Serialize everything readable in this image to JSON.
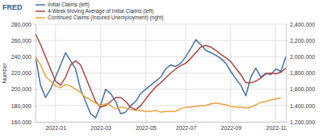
{
  "chart_data": {
    "type": "line",
    "source": "FRED",
    "y_label": "Number",
    "categories": [
      null,
      null,
      null,
      null,
      "2022-01",
      null,
      null,
      null,
      null,
      null,
      null,
      null,
      null,
      "2022-03",
      null,
      null,
      null,
      null,
      null,
      null,
      null,
      null,
      "2022-05",
      null,
      null,
      null,
      null,
      null,
      null,
      null,
      "2022-07",
      null,
      null,
      null,
      null,
      null,
      null,
      null,
      null,
      "2022-09",
      null,
      null,
      null,
      null,
      null,
      null,
      null,
      null,
      "2022-11",
      null,
      null
    ],
    "series": [
      {
        "name": "Initial Claims (left)",
        "color": "#4572a7",
        "values": [
          240000,
          205000,
          190000,
          200000,
          215000,
          230000,
          245000,
          235000,
          225000,
          200000,
          185000,
          170000,
          165000,
          180000,
          200000,
          195000,
          185000,
          170000,
          172000,
          180000,
          185000,
          195000,
          200000,
          205000,
          210000,
          215000,
          225000,
          230000,
          228000,
          232000,
          240000,
          250000,
          261000,
          255000,
          248000,
          245000,
          242000,
          238000,
          232000,
          222000,
          213000,
          205000,
          192000,
          215000,
          226000,
          215000,
          220000,
          218000,
          225000,
          222000,
          240000
        ]
      },
      {
        "name": "4-Week Moving Average of Initial Claims (left)",
        "color": "#aa4643",
        "values": [
          268000,
          255000,
          240000,
          225000,
          210000,
          205000,
          215000,
          230000,
          235000,
          230000,
          215000,
          200000,
          185000,
          178000,
          180000,
          185000,
          190000,
          190000,
          185000,
          178000,
          175000,
          180000,
          188000,
          196000,
          203000,
          208000,
          214000,
          220000,
          225000,
          229000,
          232000,
          238000,
          245000,
          252000,
          254000,
          252000,
          248000,
          243000,
          239000,
          234000,
          226000,
          218000,
          208000,
          208000,
          210000,
          214000,
          219000,
          220000,
          219000,
          221000,
          226000
        ]
      },
      {
        "name": "Continued Claims (Insured Unemployment) (right)",
        "color": "#e7a33b",
        "axis": "y2",
        "values": [
          2000000,
          1900000,
          1760000,
          1700000,
          1640000,
          1620000,
          1660000,
          1640000,
          1600000,
          1560000,
          1500000,
          1470000,
          1430000,
          1400000,
          1420000,
          1400000,
          1360000,
          1380000,
          1370000,
          1350000,
          1340000,
          1340000,
          1330000,
          1330000,
          1340000,
          1320000,
          1330000,
          1330000,
          1330000,
          1360000,
          1380000,
          1380000,
          1390000,
          1400000,
          1400000,
          1420000,
          1430000,
          1420000,
          1410000,
          1390000,
          1380000,
          1380000,
          1370000,
          1380000,
          1410000,
          1440000,
          1450000,
          1470000,
          1480000,
          1500000,
          null
        ]
      }
    ],
    "ylim": [
      160000,
      280000
    ],
    "yticks": [
      {
        "value": 160000,
        "label": "160,000"
      },
      {
        "value": 180000,
        "label": "180,000"
      },
      {
        "value": 200000,
        "label": "200,000"
      },
      {
        "value": 220000,
        "label": "220,000"
      },
      {
        "value": 240000,
        "label": "240,000"
      },
      {
        "value": 260000,
        "label": "260,000"
      },
      {
        "value": 280000,
        "label": "280,000"
      }
    ],
    "y2lim": [
      1200000,
      2400000
    ],
    "y2ticks": [
      {
        "value": 1200000,
        "label": "1,200,000"
      },
      {
        "value": 1400000,
        "label": "1,400,000"
      },
      {
        "value": 1600000,
        "label": "1,600,000"
      },
      {
        "value": 1800000,
        "label": "1,800,000"
      },
      {
        "value": 2000000,
        "label": "2,000,000"
      },
      {
        "value": 2200000,
        "label": "2,200,000"
      },
      {
        "value": 2400000,
        "label": "2,400,000"
      }
    ],
    "grid": true,
    "legend": "top-left"
  }
}
